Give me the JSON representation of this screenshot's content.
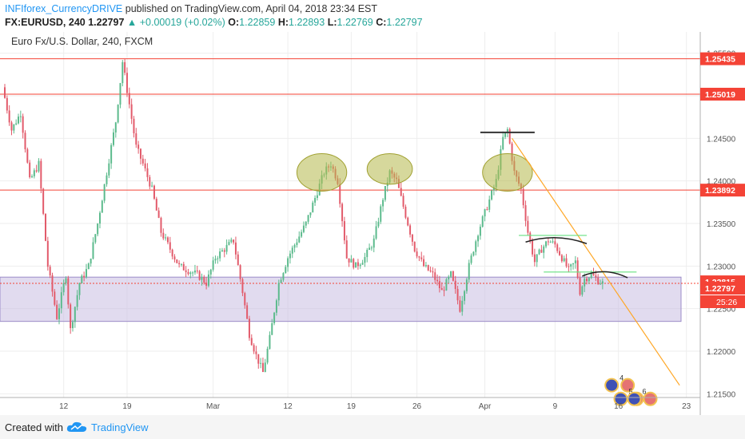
{
  "header": {
    "author": "INFIforex_CurrencyDRIVE",
    "published": "published on TradingView.com, April 04, 2018 23:34 EST",
    "symbol": "FX:EURUSD, 240",
    "last": "1.22797",
    "change": "+0.00019 (+0.02%)",
    "o_label": "O:",
    "o": "1.22859",
    "h_label": "H:",
    "h": "1.22893",
    "l_label": "L:",
    "l": "1.22769",
    "c_label": "C:",
    "c": "1.22797"
  },
  "footer": {
    "created": "Created with",
    "brand": "TradingView"
  },
  "colors": {
    "up": "#5bba8c",
    "down": "#e25a6a",
    "resistance": "#f44336",
    "zone": "#c8bee2",
    "trend": "#ffa726",
    "ellipse": "#b5b84a",
    "neck": "#66e080",
    "accent": "#2196f3"
  },
  "chart_data": {
    "type": "candlestick",
    "title": "Euro Fx/U.S. Dollar, 240, FXCM",
    "ylim": [
      1.2125,
      1.2575
    ],
    "yticks": [
      "1.25500",
      "1.25000",
      "1.24500",
      "1.24000",
      "1.23500",
      "1.23000",
      "1.22500",
      "1.22000",
      "1.21500"
    ],
    "xticks": [
      "12",
      "19",
      "Mar",
      "12",
      "19",
      "26",
      "Apr",
      "9",
      "16",
      "23"
    ],
    "price_labels": [
      {
        "value": 1.25435,
        "text": "1.25435",
        "color": "#f44336"
      },
      {
        "value": 1.25019,
        "text": "1.25019",
        "color": "#f44336"
      },
      {
        "value": 1.23892,
        "text": "1.23892",
        "color": "#f44336"
      },
      {
        "value": 1.22815,
        "text": "1.22815",
        "color": "#f44336"
      },
      {
        "value": 1.22797,
        "text": "1.22797",
        "color": "#f44336"
      }
    ],
    "countdown": "25:26",
    "horizontal_lines": [
      1.25435,
      1.25019,
      1.23892
    ],
    "zone": {
      "top": 1.2287,
      "bottom": 1.2235
    },
    "current_price_line": 1.22797,
    "waypoints": [
      [
        0,
        1.251
      ],
      [
        4,
        1.246
      ],
      [
        8,
        1.248
      ],
      [
        12,
        1.24
      ],
      [
        16,
        1.242
      ],
      [
        20,
        1.23
      ],
      [
        24,
        1.224
      ],
      [
        28,
        1.229
      ],
      [
        30,
        1.2225
      ],
      [
        34,
        1.228
      ],
      [
        38,
        1.23
      ],
      [
        42,
        1.235
      ],
      [
        46,
        1.241
      ],
      [
        50,
        1.247
      ],
      [
        53,
        1.254
      ],
      [
        56,
        1.249
      ],
      [
        59,
        1.244
      ],
      [
        62,
        1.242
      ],
      [
        66,
        1.239
      ],
      [
        70,
        1.234
      ],
      [
        74,
        1.232
      ],
      [
        78,
        1.23
      ],
      [
        82,
        1.2295
      ],
      [
        86,
        1.229
      ],
      [
        90,
        1.228
      ],
      [
        94,
        1.231
      ],
      [
        98,
        1.232
      ],
      [
        102,
        1.233
      ],
      [
        106,
        1.227
      ],
      [
        109,
        1.222
      ],
      [
        112,
        1.2195
      ],
      [
        115,
        1.2175
      ],
      [
        118,
        1.2215
      ],
      [
        122,
        1.228
      ],
      [
        126,
        1.231
      ],
      [
        130,
        1.233
      ],
      [
        134,
        1.235
      ],
      [
        138,
        1.238
      ],
      [
        142,
        1.241
      ],
      [
        145,
        1.242
      ],
      [
        148,
        1.24
      ],
      [
        152,
        1.231
      ],
      [
        156,
        1.23
      ],
      [
        160,
        1.231
      ],
      [
        164,
        1.233
      ],
      [
        168,
        1.238
      ],
      [
        171,
        1.241
      ],
      [
        174,
        1.24
      ],
      [
        178,
        1.236
      ],
      [
        182,
        1.232
      ],
      [
        186,
        1.23
      ],
      [
        190,
        1.229
      ],
      [
        194,
        1.227
      ],
      [
        198,
        1.229
      ],
      [
        202,
        1.225
      ],
      [
        206,
        1.23
      ],
      [
        210,
        1.234
      ],
      [
        214,
        1.237
      ],
      [
        218,
        1.24
      ],
      [
        221,
        1.245
      ],
      [
        223,
        1.246
      ],
      [
        226,
        1.241
      ],
      [
        229,
        1.239
      ],
      [
        232,
        1.234
      ],
      [
        235,
        1.2305
      ],
      [
        238,
        1.232
      ],
      [
        241,
        1.233
      ],
      [
        244,
        1.2325
      ],
      [
        247,
        1.231
      ],
      [
        250,
        1.2295
      ],
      [
        253,
        1.2305
      ],
      [
        255,
        1.227
      ],
      [
        257,
        1.2285
      ],
      [
        260,
        1.229
      ],
      [
        263,
        1.2283
      ],
      [
        265,
        1.228
      ]
    ],
    "drawings": {
      "ellipses": [
        {
          "t": 140,
          "price": 1.241,
          "rt": 11,
          "rp": 0.0022
        },
        {
          "t": 170,
          "price": 1.2414,
          "rt": 10,
          "rp": 0.0018
        },
        {
          "t": 222,
          "price": 1.241,
          "rt": 11,
          "rp": 0.0022
        }
      ],
      "head_line": {
        "t1": 210,
        "t2": 234,
        "price": 1.2457
      },
      "trendline": {
        "t1": 224,
        "p1": 1.245,
        "t2": 298,
        "p2": 1.216
      },
      "neck_lines": [
        {
          "t1": 227,
          "t2": 257,
          "price": 1.2336
        },
        {
          "t1": 238,
          "t2": 279,
          "price": 1.2293
        }
      ],
      "arcs": [
        {
          "t1": 230,
          "t2": 257,
          "price": 1.2331
        },
        {
          "t1": 255,
          "t2": 275,
          "price": 1.2291
        }
      ],
      "events": [
        {
          "t": 268,
          "price": 1.216,
          "label": "4"
        },
        {
          "t": 272,
          "price": 1.2144,
          "label": "5"
        },
        {
          "t": 278,
          "price": 1.2144,
          "label": "6"
        }
      ]
    }
  }
}
